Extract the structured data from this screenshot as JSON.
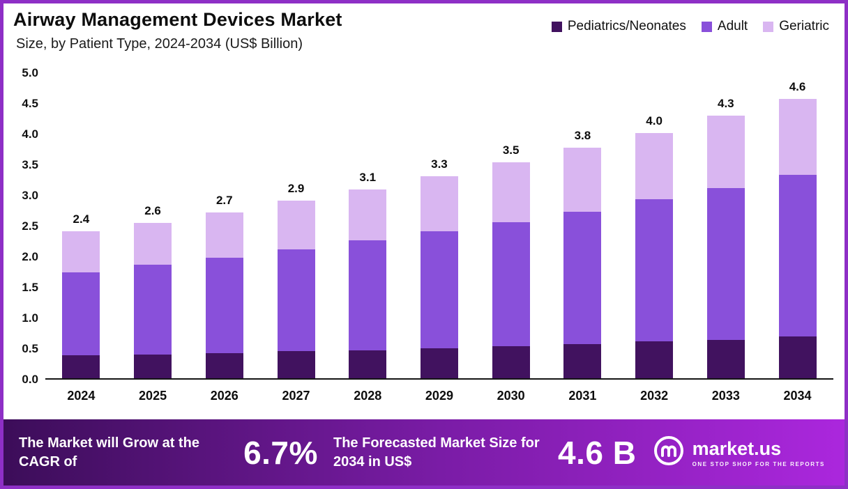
{
  "header": {
    "title": "Airway Management Devices Market",
    "subtitle": "Size, by Patient Type, 2024-2034 (US$ Billion)"
  },
  "legend": [
    {
      "label": "Pediatrics/Neonates",
      "color": "#41125f"
    },
    {
      "label": "Adult",
      "color": "#8950da"
    },
    {
      "label": "Geriatric",
      "color": "#d9b6f1"
    }
  ],
  "chart_data": {
    "type": "bar",
    "stacked": true,
    "title": "Airway Management Devices Market Size, by Patient Type, 2024-2034 (US$ Billion)",
    "categories": [
      "2024",
      "2025",
      "2026",
      "2027",
      "2028",
      "2029",
      "2030",
      "2031",
      "2032",
      "2033",
      "2034"
    ],
    "series": [
      {
        "name": "Pediatrics/Neonates",
        "color": "#41125f",
        "values": [
          0.37,
          0.39,
          0.41,
          0.44,
          0.46,
          0.49,
          0.52,
          0.56,
          0.6,
          0.63,
          0.68
        ]
      },
      {
        "name": "Adult",
        "color": "#8950da",
        "values": [
          1.36,
          1.46,
          1.56,
          1.66,
          1.79,
          1.91,
          2.03,
          2.16,
          2.32,
          2.47,
          2.64
        ]
      },
      {
        "name": "Geriatric",
        "color": "#d9b6f1",
        "values": [
          0.67,
          0.68,
          0.73,
          0.8,
          0.83,
          0.9,
          0.97,
          1.04,
          1.08,
          1.18,
          1.24
        ]
      }
    ],
    "totals": [
      2.4,
      2.6,
      2.7,
      2.9,
      3.1,
      3.3,
      3.5,
      3.8,
      4.0,
      4.3,
      4.6
    ],
    "total_labels": [
      "2.4",
      "2.6",
      "2.7",
      "2.9",
      "3.1",
      "3.3",
      "3.5",
      "3.8",
      "4.0",
      "4.3",
      "4.6"
    ],
    "ylim": [
      0,
      5
    ],
    "yticks": [
      "5.0",
      "4.5",
      "4.0",
      "3.5",
      "3.0",
      "2.5",
      "2.0",
      "1.5",
      "1.0",
      "0.5",
      "0.0"
    ],
    "grid": false,
    "legend_position": "top-right",
    "ylabel": "US$ Billion"
  },
  "footer": {
    "cagr_text": "The Market will Grow at the CAGR of",
    "cagr_value": "6.7%",
    "forecast_text": "The Forecasted Market Size for 2034 in US$",
    "forecast_value": "4.6 B",
    "logo_text": "market.us",
    "logo_tagline": "ONE STOP SHOP FOR THE REPORTS"
  }
}
